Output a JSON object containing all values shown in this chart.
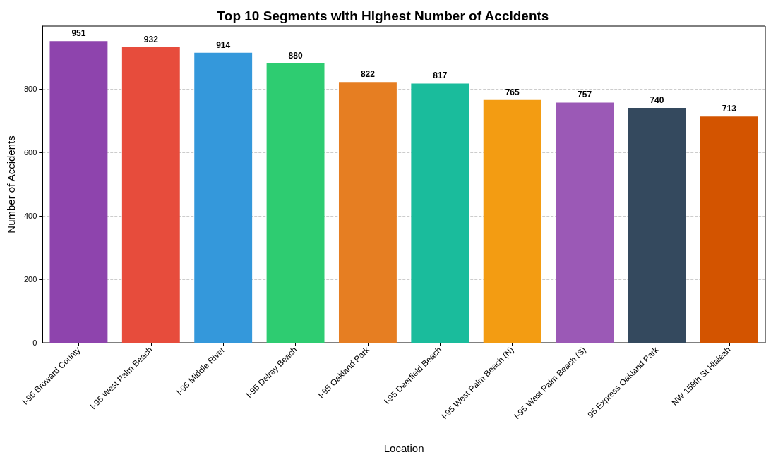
{
  "chart_data": {
    "type": "bar",
    "title": "Top 10 Segments with Highest Number of Accidents",
    "xlabel": "Location",
    "ylabel": "Number of Accidents",
    "categories": [
      "I-95 Broward County",
      "I-95 West Palm Beach",
      "I-95 Middle River",
      "I-95 Delray Beach",
      "I-95 Oakland Park",
      "I-95 Deerfield Beach",
      "I-95 West Palm Beach (N)",
      "I-95 West Palm Beach (S)",
      "95 Express Oakland Park",
      "NW 159th St Hialeah"
    ],
    "values": [
      951,
      932,
      914,
      880,
      822,
      817,
      765,
      757,
      740,
      713
    ],
    "colors": [
      "#8e44ad",
      "#e74c3c",
      "#3498db",
      "#2ecc71",
      "#e67e22",
      "#1abc9c",
      "#f39c12",
      "#9b59b6",
      "#34495e",
      "#d35400"
    ],
    "ylim": [
      0,
      998
    ],
    "yticks": [
      0,
      200,
      400,
      600,
      800
    ],
    "grid": "y",
    "data_labels": true
  }
}
